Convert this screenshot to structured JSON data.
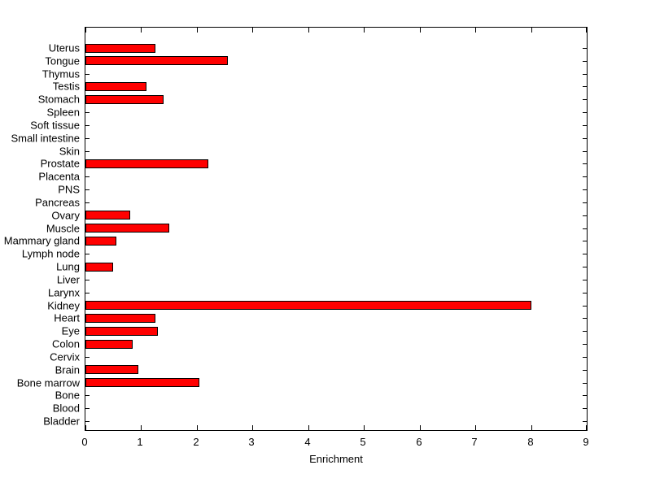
{
  "chart_data": {
    "type": "bar",
    "orientation": "horizontal",
    "title": "",
    "xlabel": "Enrichment",
    "ylabel": "",
    "xlim": [
      0,
      9
    ],
    "xticks": [
      0,
      1,
      2,
      3,
      4,
      5,
      6,
      7,
      8,
      9
    ],
    "grid": false,
    "legend": "none",
    "bar_color": "#ff0000",
    "bar_edge_color": "#000000",
    "background_color": "#ffffff",
    "categories_top_to_bottom": [
      "Uterus",
      "Tongue",
      "Thymus",
      "Testis",
      "Stomach",
      "Spleen",
      "Soft tissue",
      "Small intestine",
      "Skin",
      "Prostate",
      "Placenta",
      "PNS",
      "Pancreas",
      "Ovary",
      "Muscle",
      "Mammary gland",
      "Lymph node",
      "Lung",
      "Liver",
      "Larynx",
      "Kidney",
      "Heart",
      "Eye",
      "Colon",
      "Cervix",
      "Brain",
      "Bone marrow",
      "Bone",
      "Blood",
      "Bladder"
    ],
    "values": [
      1.25,
      2.55,
      0,
      1.1,
      1.4,
      0,
      0,
      0,
      0,
      2.2,
      0,
      0,
      0,
      0.8,
      1.5,
      0.55,
      0,
      0.5,
      0,
      0,
      8.0,
      1.25,
      1.3,
      0.85,
      0,
      0.95,
      2.05,
      0,
      0,
      0
    ]
  }
}
